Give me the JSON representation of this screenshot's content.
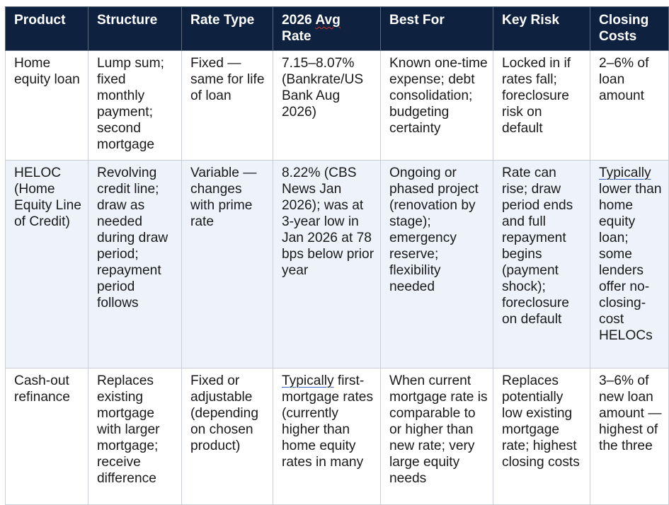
{
  "headers": {
    "product": "Product",
    "structure": "Structure",
    "rate_type": "Rate Type",
    "avg_rate_a": "2026",
    "avg_rate_b": "Avg",
    "avg_rate_c": "Rate",
    "best_for": "Best For",
    "key_risk": "Key Risk",
    "closing_costs": "Closing Costs"
  },
  "rows": [
    {
      "product": "Home equity loan",
      "structure": "Lump sum; fixed monthly payment; second mortgage",
      "rate_type": "Fixed — same for life of loan",
      "avg_rate": "7.15–8.07% (Bankrate/US Bank Aug 2026)",
      "best_for": "Known one-time expense; debt consolidation; budgeting certainty",
      "key_risk": "Locked in if rates fall; foreclosure risk on default",
      "closing_costs": "2–6% of loan amount"
    },
    {
      "product": "HELOC (Home Equity Line of Credit)",
      "structure": "Revolving credit line; draw as needed during draw period; repayment period follows",
      "rate_type": "Variable — changes with prime rate",
      "avg_rate": "8.22% (CBS News Jan 2026); was at 3-year low in Jan 2026 at 78 bps below prior year",
      "best_for": "Ongoing or phased project (renovation by stage); emergency reserve; flexibility needed",
      "key_risk": "Rate can rise; draw period ends and full repayment begins (payment shock); foreclosure on default",
      "closing_costs_flag": "Typically",
      "closing_costs_rest": " lower than home equity loan; some lenders offer no-closing-cost HELOCs"
    },
    {
      "product": "Cash-out refinance",
      "structure": "Replaces existing mortgage with larger mortgage; receive difference",
      "rate_type": "Fixed or adjustable (depending on chosen product)",
      "avg_rate_flag": "Typically",
      "avg_rate_rest": " first-mortgage rates (currently higher than home equity rates in many",
      "best_for": "When current mortgage rate is comparable to or higher than new rate; very large equity needs",
      "key_risk": "Replaces potentially low existing mortgage rate; highest closing costs",
      "closing_costs": "3–6% of new loan amount — highest of the three"
    }
  ]
}
